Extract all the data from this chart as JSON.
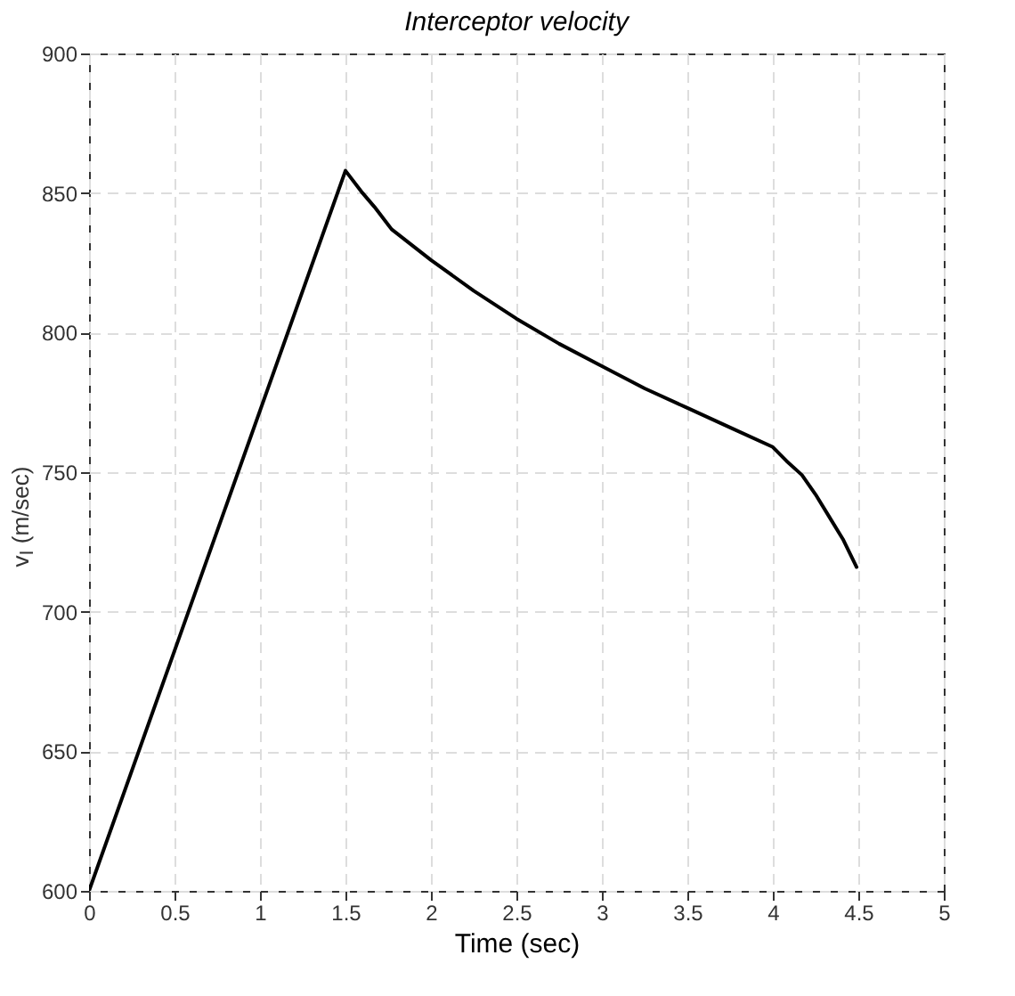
{
  "chart_data": {
    "type": "line",
    "title": "Interceptor velocity",
    "xlabel": "Time (sec)",
    "ylabel": "v$_{I}$ (m/sec)",
    "x": [
      0,
      1.5,
      1.6,
      1.67,
      1.77,
      2.0,
      2.25,
      2.5,
      2.75,
      3.0,
      3.25,
      3.5,
      3.75,
      4.0,
      4.08,
      4.17,
      4.25,
      4.33,
      4.41,
      4.49
    ],
    "series": [
      {
        "color": "#000000",
        "values": [
          600,
          858,
          850,
          845,
          837,
          826,
          815,
          805,
          796,
          788,
          780,
          773,
          766,
          759,
          754,
          749,
          742,
          734,
          726,
          716
        ]
      }
    ],
    "xlim": [
      0,
      5
    ],
    "xticks": [
      0,
      0.5,
      1,
      1.5,
      2,
      2.5,
      3,
      3.5,
      4,
      4.5,
      5
    ],
    "ylim": [
      600,
      900
    ],
    "yticks": [
      600,
      650,
      700,
      750,
      800,
      850,
      900
    ],
    "grid": true,
    "line_style": "solid",
    "marker": "none"
  }
}
